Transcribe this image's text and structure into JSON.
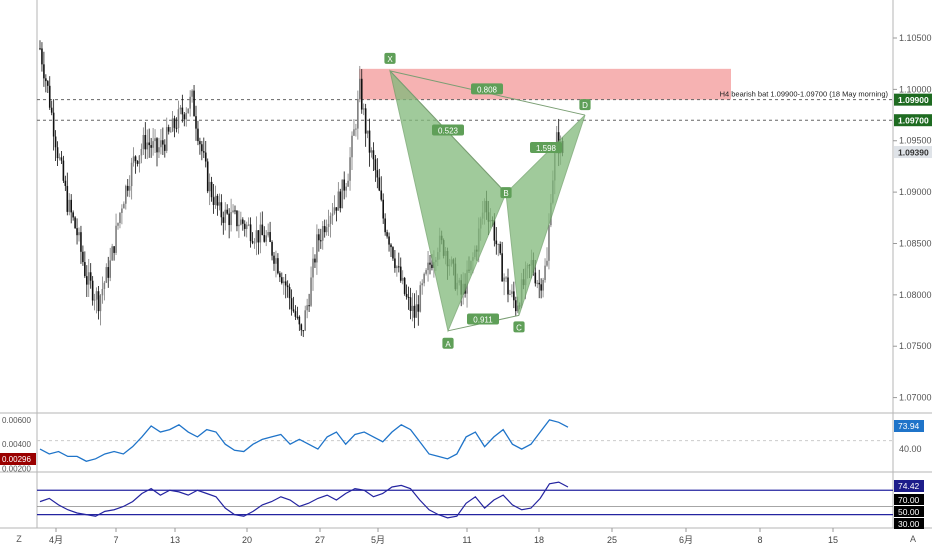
{
  "colors": {
    "up": "#7c7c7c",
    "down": "#111111",
    "pattern_fill": "#81b97a",
    "pattern_label": "#5f9f58",
    "supply_zone": "#f4a5a5",
    "label_green": "#1e6b21",
    "rsi_line": "#1f74c9",
    "stoch_line": "#2424a0",
    "last_price_bg": "#dfe3e8",
    "ind_value_bg": "#1f74c9",
    "ind_low_bg": "#9a0000",
    "stoch_value_bg": "#1d1d8a",
    "stoch_level_bg": "#000000"
  },
  "axis": {
    "y_ticks": [
      "1.10500",
      "1.10000",
      "1.09500",
      "1.09000",
      "1.08500",
      "1.08000",
      "1.07500",
      "1.07000"
    ],
    "x_ticks": [
      "4月",
      "7",
      "13",
      "20",
      "27",
      "5月",
      "11",
      "18",
      "25",
      "6月",
      "8",
      "15"
    ],
    "corner_left": "Z",
    "corner_right": "A"
  },
  "price_labels": {
    "upper_level": "1.09900",
    "lower_level": "1.09700",
    "last": "1.09390"
  },
  "annotation": "H4 bearish bat 1.09900-1.09700 (18 May morning)",
  "pattern": {
    "points": [
      "X",
      "A",
      "B",
      "C",
      "D"
    ],
    "ratios": [
      "0.808",
      "0.523",
      "0.911",
      "1.598"
    ]
  },
  "indicator1": {
    "ticks": [
      "0.00600",
      "0.00400",
      "0.00200"
    ],
    "right_ticks": [
      "40.00"
    ],
    "value": "73.94",
    "low_value": "0.00296"
  },
  "indicator2": {
    "value": "74.42",
    "levels": [
      "70.00",
      "50.00",
      "30.00"
    ]
  },
  "chart_data": {
    "type": "candlestick",
    "title": "",
    "y_range": [
      1.0685,
      1.1087
    ],
    "price_levels": [
      1.099,
      1.097
    ],
    "last_price": 1.0939,
    "supply_zone": [
      1.099,
      1.102
    ],
    "harmonic_pattern": {
      "name": "bearish bat",
      "X": 1.1018,
      "A": 1.0765,
      "B": 1.0899,
      "C": 1.078,
      "D": 1.0975
    },
    "price_path": [
      [
        0,
        1.104
      ],
      [
        4,
        1.1
      ],
      [
        9,
        1.094
      ],
      [
        14,
        1.089
      ],
      [
        19,
        1.086
      ],
      [
        24,
        1.0815
      ],
      [
        30,
        1.0795
      ],
      [
        36,
        1.083
      ],
      [
        42,
        1.089
      ],
      [
        48,
        1.093
      ],
      [
        54,
        1.095
      ],
      [
        60,
        1.094
      ],
      [
        66,
        1.0955
      ],
      [
        72,
        1.0975
      ],
      [
        78,
        1.099
      ],
      [
        82,
        1.095
      ],
      [
        86,
        1.091
      ],
      [
        92,
        1.088
      ],
      [
        98,
        1.0875
      ],
      [
        104,
        1.087
      ],
      [
        110,
        1.086
      ],
      [
        116,
        1.0855
      ],
      [
        120,
        1.084
      ],
      [
        126,
        1.081
      ],
      [
        130,
        1.0785
      ],
      [
        134,
        1.076
      ],
      [
        138,
        1.08
      ],
      [
        142,
        1.085
      ],
      [
        148,
        1.088
      ],
      [
        154,
        1.0895
      ],
      [
        158,
        1.092
      ],
      [
        162,
        1.097
      ],
      [
        164,
        1.1
      ],
      [
        168,
        1.095
      ],
      [
        172,
        1.092
      ],
      [
        176,
        1.0875
      ],
      [
        180,
        1.085
      ],
      [
        184,
        1.082
      ],
      [
        188,
        1.0795
      ],
      [
        192,
        1.078
      ],
      [
        196,
        1.0805
      ],
      [
        200,
        1.083
      ],
      [
        204,
        1.085
      ],
      [
        208,
        1.0845
      ],
      [
        212,
        1.082
      ],
      [
        216,
        1.08
      ],
      [
        220,
        1.082
      ],
      [
        224,
        1.085
      ],
      [
        228,
        1.089
      ],
      [
        232,
        1.087
      ],
      [
        236,
        1.083
      ],
      [
        240,
        1.0805
      ],
      [
        244,
        1.079
      ],
      [
        248,
        1.081
      ],
      [
        252,
        1.083
      ],
      [
        256,
        1.081
      ],
      [
        260,
        1.083
      ],
      [
        262,
        1.09
      ],
      [
        265,
        1.095
      ],
      [
        268,
        1.0939
      ]
    ],
    "indicator1_series": [
      0.0036,
      0.0032,
      0.0034,
      0.003,
      0.003,
      0.0026,
      0.0028,
      0.0032,
      0.0034,
      0.0032,
      0.0038,
      0.0046,
      0.0055,
      0.005,
      0.0052,
      0.0056,
      0.005,
      0.0046,
      0.0052,
      0.005,
      0.004,
      0.0035,
      0.0034,
      0.004,
      0.0044,
      0.0046,
      0.0048,
      0.004,
      0.0044,
      0.004,
      0.0036,
      0.0046,
      0.005,
      0.004,
      0.0048,
      0.005,
      0.0046,
      0.0042,
      0.005,
      0.0056,
      0.0052,
      0.0042,
      0.0032,
      0.003,
      0.0028,
      0.0032,
      0.0046,
      0.005,
      0.0038,
      0.0046,
      0.0052,
      0.004,
      0.0036,
      0.004,
      0.005,
      0.006,
      0.0058,
      0.0054
    ],
    "indicator2_series": [
      56,
      60,
      52,
      46,
      42,
      40,
      38,
      44,
      46,
      50,
      56,
      66,
      72,
      64,
      70,
      68,
      64,
      70,
      66,
      62,
      48,
      40,
      38,
      44,
      52,
      56,
      62,
      58,
      50,
      54,
      60,
      64,
      58,
      66,
      72,
      70,
      62,
      66,
      74,
      76,
      72,
      58,
      46,
      40,
      36,
      38,
      54,
      62,
      48,
      58,
      64,
      52,
      46,
      48,
      60,
      78,
      80,
      74
    ],
    "indicator2_levels": [
      70,
      50,
      30
    ]
  }
}
